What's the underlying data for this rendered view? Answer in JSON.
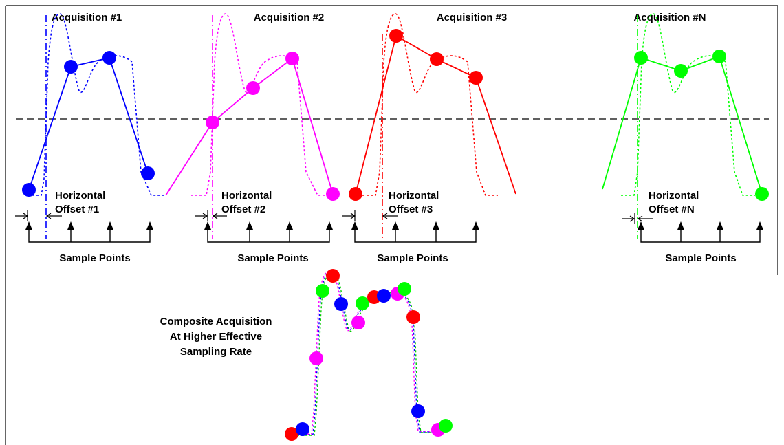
{
  "colors": {
    "acq1": "#0000ff",
    "acq2": "#ff00ff",
    "acq3": "#ff0000",
    "acqN": "#00ff00",
    "threshold": "#000000"
  },
  "acquisitions": [
    {
      "title": "Acquisition #1",
      "offset_line1": "Horizontal",
      "offset_line2": "Offset #1",
      "sample_label": "Sample Points"
    },
    {
      "title": "Acquisition #2",
      "offset_line1": "Horizontal",
      "offset_line2": "Offset #2",
      "sample_label": "Sample Points"
    },
    {
      "title": "Acquisition #3",
      "offset_line1": "Horizontal",
      "offset_line2": "Offset #3",
      "sample_label": "Sample Points"
    },
    {
      "title": "Acquisition #N",
      "offset_line1": "Horizontal",
      "offset_line2": "Offset #N",
      "sample_label": "Sample Points"
    }
  ],
  "composite": {
    "line1": "Composite Acquisition",
    "line2": "At Higher Effective",
    "line3": "Sampling Rate"
  }
}
